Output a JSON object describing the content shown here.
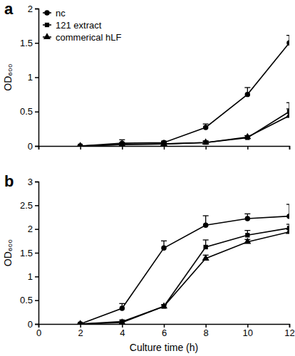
{
  "chart_data": [
    {
      "type": "line",
      "title": "a",
      "ylabel": "OD₆₀₀",
      "x": [
        2,
        4,
        6,
        8,
        10,
        12
      ],
      "xlim": [
        0,
        12
      ],
      "xticks": [
        0,
        2,
        4,
        6,
        8,
        10,
        12
      ],
      "ylim": [
        0,
        2
      ],
      "yticks": [
        0,
        0.5,
        1,
        1.5,
        2
      ],
      "tick_labels": "y",
      "legend": "upper left",
      "series": [
        {
          "name": "nc",
          "color": "#000000",
          "marker": "circle",
          "values": [
            0,
            0.04,
            0.05,
            0.27,
            0.75,
            1.5
          ],
          "errors": [
            0,
            0.05,
            0.02,
            0.05,
            0.1,
            0.11
          ]
        },
        {
          "name": "121 extract",
          "color": "#000000",
          "marker": "square",
          "values": [
            0,
            0.02,
            0.03,
            0.05,
            0.12,
            0.5
          ],
          "errors": [
            0,
            0.03,
            0.02,
            0.02,
            0.03,
            0.13
          ]
        },
        {
          "name": "commerical hLF",
          "color": "#000000",
          "marker": "triangle",
          "values": [
            0,
            0.02,
            0.03,
            0.05,
            0.13,
            0.44
          ],
          "errors": [
            0,
            0.02,
            0.02,
            0.02,
            0.02,
            0.1
          ]
        }
      ]
    },
    {
      "type": "line",
      "title": "b",
      "xlabel": "Culture time (h)",
      "ylabel": "OD₆₀₀",
      "x": [
        2,
        4,
        6,
        8,
        10,
        12
      ],
      "xlim": [
        0,
        12
      ],
      "xticks": [
        0,
        2,
        4,
        6,
        8,
        10,
        12
      ],
      "ylim": [
        0,
        3
      ],
      "yticks": [
        0,
        0.5,
        1,
        1.5,
        2,
        2.5,
        3
      ],
      "series": [
        {
          "color": "#000000",
          "marker": "circle",
          "values": [
            0,
            0.33,
            1.6,
            2.08,
            2.22,
            2.27
          ],
          "errors": [
            0,
            0.1,
            0.15,
            0.2,
            0.1,
            0.25
          ]
        },
        {
          "color": "#000000",
          "marker": "square",
          "values": [
            0,
            0.05,
            0.37,
            1.62,
            1.87,
            2.02
          ],
          "errors": [
            0,
            0.03,
            0.03,
            0.15,
            0.1,
            0.08
          ]
        },
        {
          "color": "#000000",
          "marker": "triangle",
          "values": [
            0,
            0.03,
            0.37,
            1.38,
            1.73,
            1.94
          ],
          "errors": [
            0,
            0.02,
            0.03,
            0.07,
            0.05,
            0.05
          ]
        }
      ]
    }
  ]
}
